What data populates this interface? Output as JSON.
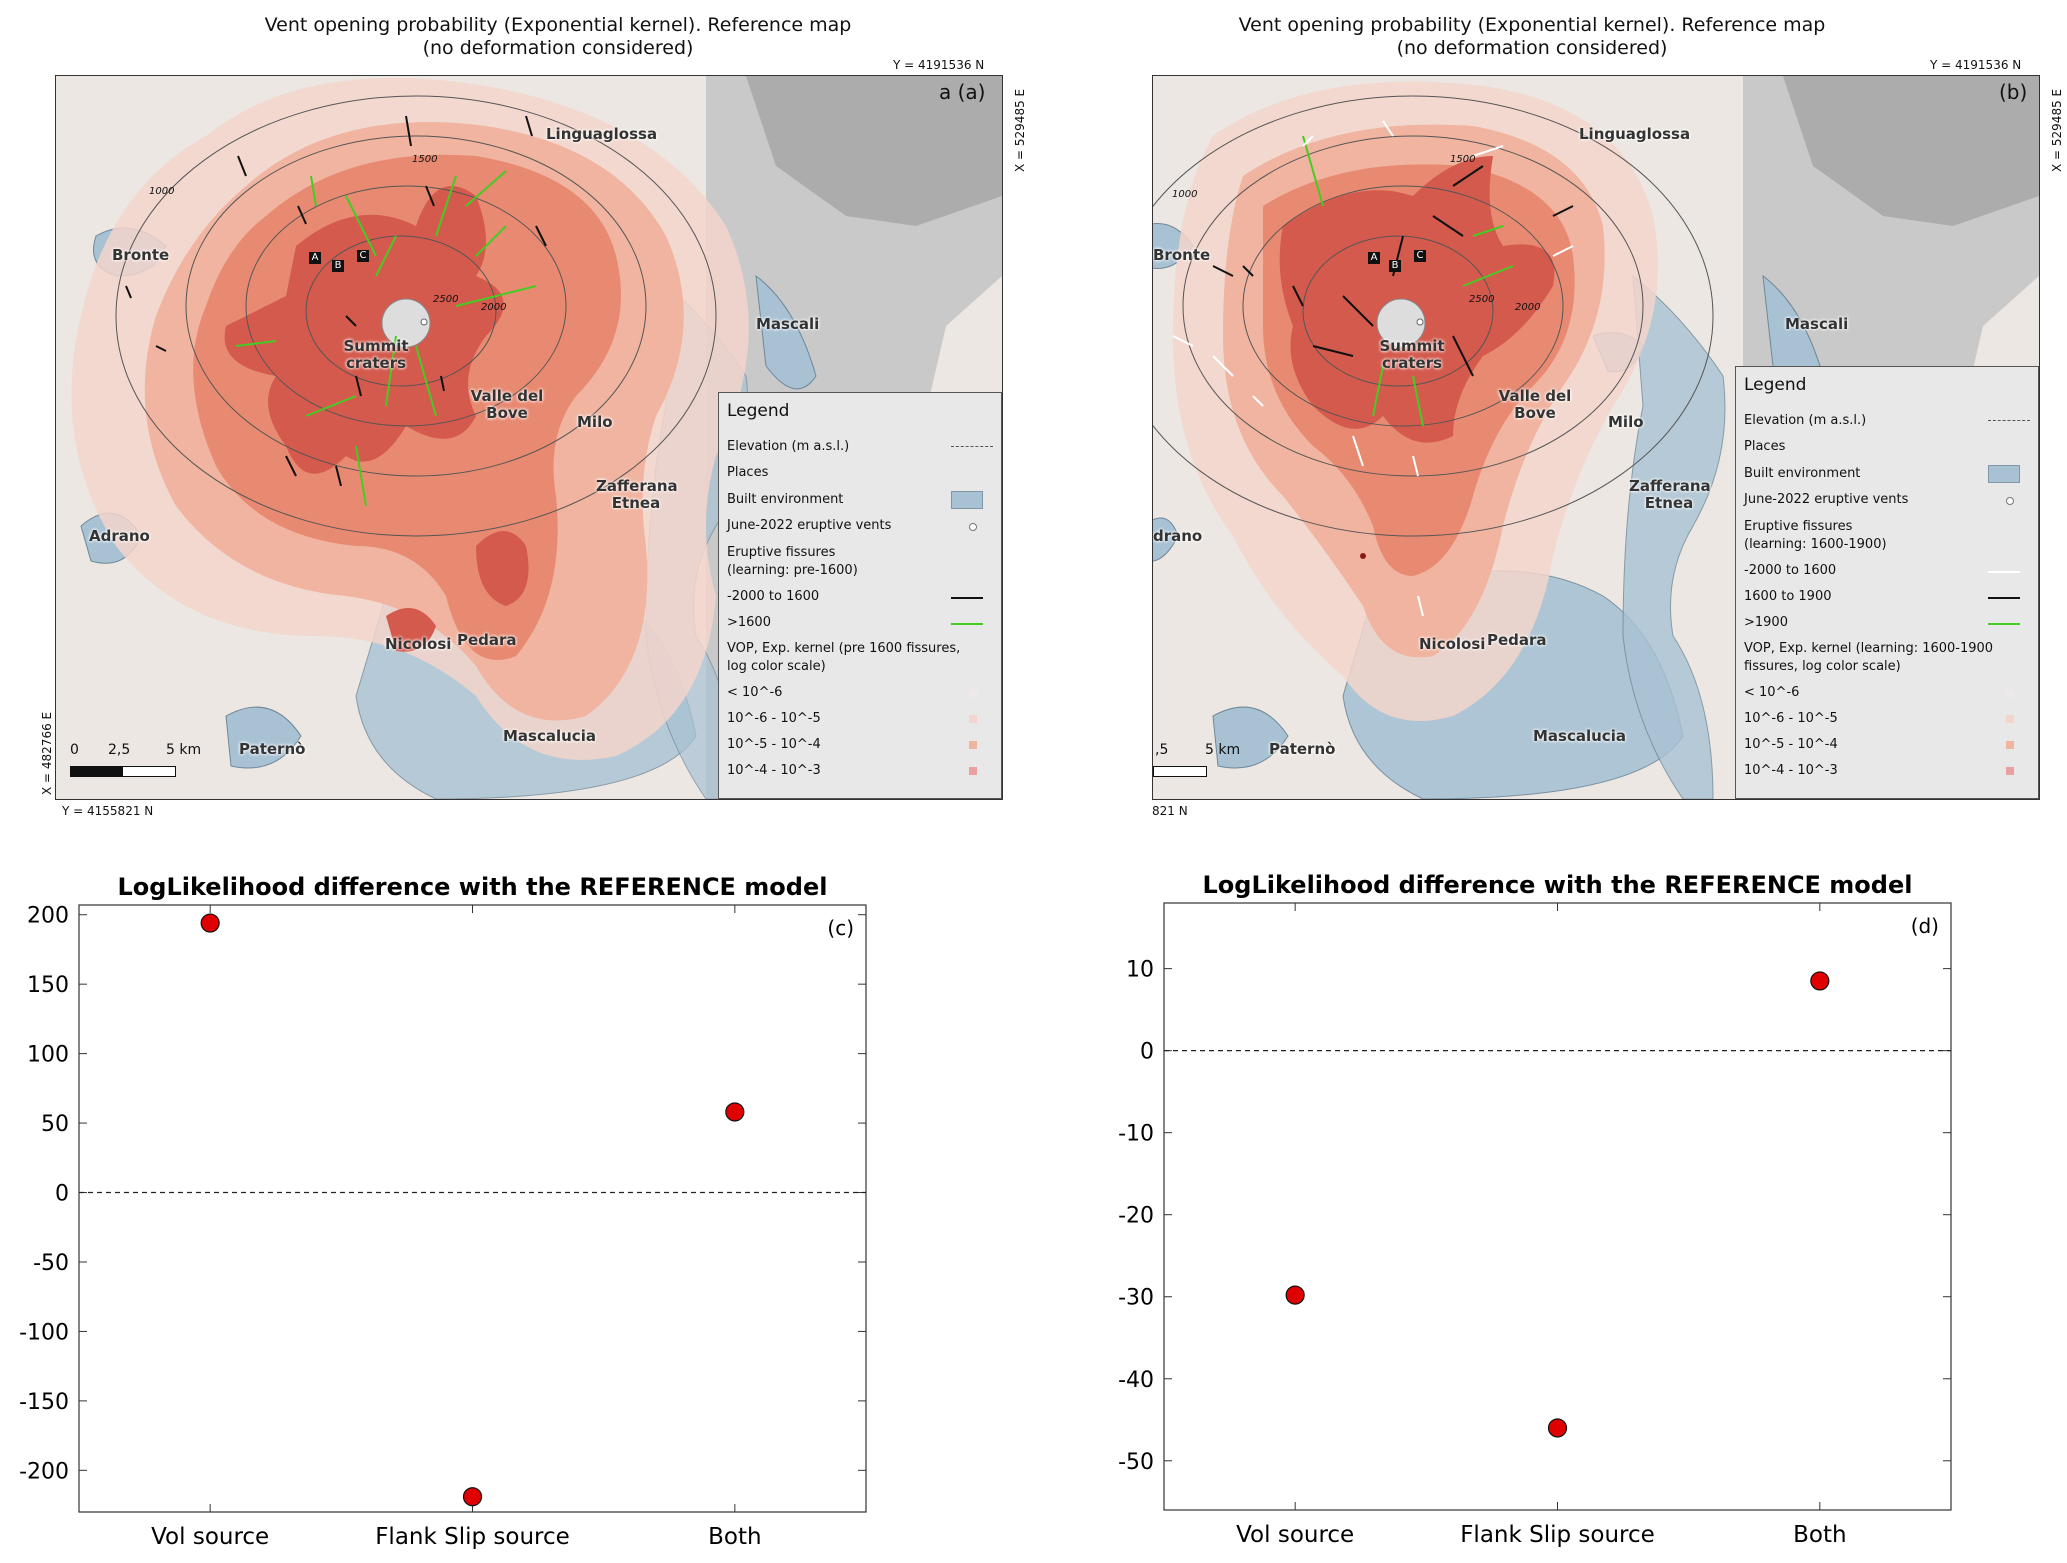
{
  "panel_a": {
    "title_line1": "Vent opening probability (Exponential kernel).  Reference map",
    "title_line2": "(no deformation considered)",
    "coord_top": "Y = 4191536 N",
    "coord_right": "X = 529485 E",
    "coord_bottom": "Y = 4155821 N",
    "coord_left": "X = 482766 E",
    "panel_label": "a (a)",
    "places": [
      "Linguaglossa",
      "Bronte",
      "Mascali",
      "Summit craters",
      "Valle del Bove",
      "Milo",
      "Zafferana Etnea",
      "Adrano",
      "Nicolosi",
      "Pedara",
      "Mascalucia",
      "Paternò"
    ],
    "contours": [
      "1000",
      "1500",
      "2000",
      "2500"
    ],
    "markers": [
      "A",
      "B",
      "C"
    ],
    "scale": {
      "zero": "0",
      "mid": "2,5",
      "end": "5 km"
    },
    "legend": {
      "title": "Legend",
      "rows": [
        "Elevation (m a.s.l.)",
        "Places",
        "Built environment",
        "June-2022 eruptive vents",
        "Eruptive fissures",
        "(learning: pre-1600)",
        "-2000 to 1600",
        ">1600",
        "VOP, Exp. kernel (pre 1600 fissures,",
        "log color scale)",
        "< 10^-6",
        "10^-6 - 10^-5",
        "10^-5 - 10^-4",
        "10^-4 - 10^-3"
      ]
    }
  },
  "panel_b": {
    "title_line1": "Vent opening probability (Exponential kernel).  Reference map",
    "title_line2": "(no deformation considered)",
    "coord_top": "Y = 4191536 N",
    "coord_right": "X = 529485 E",
    "coord_bottom": "821 N",
    "panel_label": "(b)",
    "places": [
      "Linguaglossa",
      "Bronte",
      "Mascali",
      "Summit craters",
      "Valle del Bove",
      "Milo",
      "Zafferana Etnea",
      "drano",
      "Nicolosi",
      "Pedara",
      "Mascalucia",
      "Paternò"
    ],
    "contours": [
      "1000",
      "1500",
      "2000",
      "2500"
    ],
    "markers": [
      "A",
      "B",
      "C"
    ],
    "scale": {
      "mid": ",5",
      "end": "5 km"
    },
    "legend": {
      "title": "Legend",
      "rows": [
        "Elevation (m a.s.l.)",
        "Places",
        "Built environment",
        "June-2022 eruptive vents",
        "Eruptive fissures",
        "(learning: 1600-1900)",
        "-2000 to 1600",
        "1600 to 1900",
        ">1900",
        "VOP, Exp. kernel (learning: 1600-1900",
        "fissures, log color scale)",
        "< 10^-6",
        "10^-6 - 10^-5",
        "10^-5 - 10^-4",
        "10^-4 - 10^-3"
      ]
    }
  },
  "colors": {
    "vop1": "#f3d5cb",
    "vop2": "#f0b4a0",
    "vop3": "#e88a72",
    "vop4": "#d45a4d",
    "built": "#a8c2d4",
    "fissure_old": "#111111",
    "fissure_new": "#44cc22",
    "fissure_white": "#ffffff",
    "point_fill": "#e00000"
  },
  "chart_data": [
    {
      "type": "scatter",
      "title": "LogLikelihood difference with the REFERENCE model",
      "panel": "(c)",
      "categories": [
        "Vol source",
        "Flank Slip source",
        "Both"
      ],
      "values": [
        194,
        -219,
        58
      ],
      "reference_line": 0,
      "ylim": [
        -230,
        207
      ],
      "yticks": [
        200,
        150,
        100,
        50,
        0,
        -50,
        -100,
        -150,
        -200
      ],
      "xlabel": "",
      "ylabel": ""
    },
    {
      "type": "scatter",
      "title": "LogLikelihood difference with the REFERENCE model",
      "panel": "(d)",
      "categories": [
        "Vol source",
        "Flank Slip source",
        "Both"
      ],
      "values": [
        -29.8,
        -46.0,
        8.5
      ],
      "reference_line": 0,
      "ylim": [
        -56,
        18
      ],
      "yticks": [
        10,
        0,
        -10,
        -20,
        -30,
        -40,
        -50
      ],
      "xlabel": "",
      "ylabel": ""
    }
  ]
}
